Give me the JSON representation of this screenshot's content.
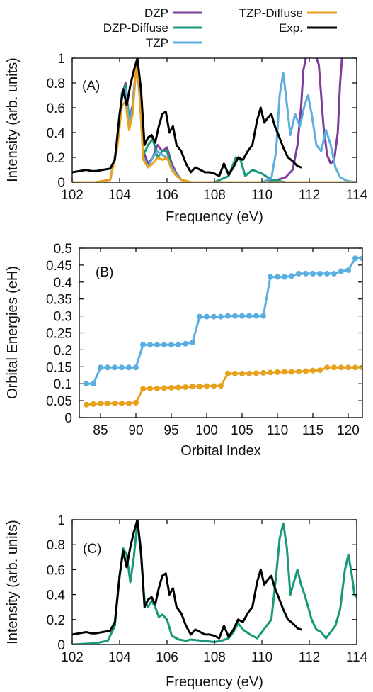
{
  "colors": {
    "DZP": "#7e3d9a",
    "DZP-Diffuse": "#17987a",
    "TZP": "#5aaee0",
    "TZP-Diffuse": "#e8a11c",
    "Exp.": "#000000"
  },
  "legend": [
    "DZP",
    "DZP-Diffuse",
    "TZP",
    "TZP-Diffuse",
    "Exp."
  ],
  "chart_data": [
    {
      "panel": "(A)",
      "type": "line",
      "xlabel": "Frequency (eV)",
      "ylabel": "Intensity (arb. units)",
      "xlim": [
        102,
        114
      ],
      "ylim": [
        0,
        1
      ],
      "xticks": [
        "102",
        "104",
        "106",
        "108",
        "110",
        "112",
        "114"
      ],
      "yticks": [
        "0",
        "0.2",
        "0.4",
        "0.6",
        "0.8",
        "1"
      ],
      "grid": false,
      "legend_position": "top",
      "series": [
        {
          "name": "DZP",
          "x": [
            102,
            103,
            103.6,
            103.9,
            104.1,
            104.25,
            104.4,
            104.55,
            104.72,
            104.85,
            105.0,
            105.2,
            105.4,
            105.6,
            105.8,
            106.0,
            106.2,
            106.4,
            106.6,
            107.0,
            108.0,
            109.0,
            110.0,
            110.5,
            111.0,
            111.3,
            111.5,
            111.65,
            111.75,
            111.85,
            112.0
          ],
          "y": [
            0,
            0,
            0.02,
            0.3,
            0.7,
            0.8,
            0.5,
            0.62,
            0.98,
            0.72,
            0.25,
            0.15,
            0.2,
            0.3,
            0.25,
            0.28,
            0.15,
            0.07,
            0.02,
            0,
            0,
            0,
            0,
            0.01,
            0.04,
            0.1,
            0.3,
            0.6,
            0.9,
            1.0,
            1.05
          ]
        },
        {
          "name": "DZP",
          "x": [
            112.2,
            112.4,
            112.6,
            112.75,
            112.9,
            113.05,
            113.2,
            113.3,
            113.4
          ],
          "y": [
            1.05,
            0.95,
            0.45,
            0.22,
            0.15,
            0.18,
            0.4,
            0.8,
            1.05
          ]
        },
        {
          "name": "DZP-Diffuse",
          "x": [
            102,
            103,
            103.6,
            103.9,
            104.1,
            104.25,
            104.4,
            104.55,
            104.72,
            104.85,
            105.0,
            105.2,
            105.4,
            105.6,
            105.8,
            106.0,
            106.2,
            106.4,
            106.6,
            107.0,
            108.0,
            108.6,
            108.9,
            109.1,
            109.3,
            109.6,
            110.0,
            110.4,
            111.0,
            112.0,
            113.0,
            114.0
          ],
          "y": [
            0,
            0,
            0.02,
            0.3,
            0.72,
            0.78,
            0.5,
            0.6,
            0.97,
            0.7,
            0.22,
            0.3,
            0.35,
            0.2,
            0.25,
            0.25,
            0.12,
            0.06,
            0.02,
            0,
            0,
            0.05,
            0.2,
            0.18,
            0.05,
            0.1,
            0.07,
            0.02,
            0,
            0,
            0,
            0
          ]
        },
        {
          "name": "TZP",
          "x": [
            102,
            103,
            103.6,
            103.9,
            104.1,
            104.25,
            104.4,
            104.55,
            104.72,
            104.85,
            105.0,
            105.2,
            105.4,
            105.6,
            105.8,
            106.0,
            106.2,
            106.4,
            106.6,
            107.0,
            108.0,
            109.0,
            110.0,
            110.4,
            110.6,
            110.75,
            110.9,
            111.0,
            111.2,
            111.4,
            111.6,
            111.8,
            111.95,
            112.1,
            112.3,
            112.5,
            112.7,
            112.9,
            113.1,
            113.3,
            113.6,
            114.0
          ],
          "y": [
            0,
            0,
            0.02,
            0.3,
            0.68,
            0.75,
            0.45,
            0.6,
            0.95,
            0.68,
            0.2,
            0.12,
            0.2,
            0.25,
            0.22,
            0.2,
            0.12,
            0.06,
            0.02,
            0,
            0,
            0,
            0,
            0.03,
            0.25,
            0.7,
            0.88,
            0.72,
            0.38,
            0.55,
            0.45,
            0.62,
            0.7,
            0.55,
            0.3,
            0.25,
            0.42,
            0.3,
            0.12,
            0.04,
            0.01,
            0
          ]
        },
        {
          "name": "TZP-Diffuse",
          "x": [
            102,
            103,
            103.6,
            103.9,
            104.1,
            104.25,
            104.4,
            104.55,
            104.72,
            104.85,
            105.0,
            105.2,
            105.4,
            105.6,
            105.8,
            106.0,
            106.2,
            106.4,
            106.6,
            107.0,
            108.0,
            109.0,
            110.0,
            111.0,
            112.0,
            113.0,
            114.0
          ],
          "y": [
            0,
            0,
            0.02,
            0.28,
            0.62,
            0.65,
            0.42,
            0.55,
            0.98,
            0.7,
            0.18,
            0.12,
            0.15,
            0.2,
            0.18,
            0.2,
            0.1,
            0.05,
            0.02,
            0,
            0,
            0,
            0,
            0,
            0,
            0,
            0
          ]
        },
        {
          "name": "Exp.",
          "x": [
            102.0,
            102.3,
            102.6,
            102.8,
            103.0,
            103.3,
            103.6,
            103.8,
            104.0,
            104.15,
            104.3,
            104.45,
            104.6,
            104.75,
            104.9,
            105.05,
            105.2,
            105.35,
            105.5,
            105.65,
            105.8,
            105.95,
            106.1,
            106.25,
            106.4,
            106.6,
            106.8,
            107.0,
            107.2,
            107.4,
            107.6,
            107.8,
            108.0,
            108.2,
            108.4,
            108.6,
            108.8,
            109.0,
            109.2,
            109.4,
            109.6,
            109.8,
            109.95,
            110.1,
            110.25,
            110.4,
            110.55,
            110.7,
            110.9,
            111.1,
            111.3,
            111.5,
            111.65
          ],
          "y": [
            0.08,
            0.09,
            0.1,
            0.09,
            0.09,
            0.1,
            0.11,
            0.18,
            0.55,
            0.75,
            0.62,
            0.78,
            0.9,
            1.0,
            0.75,
            0.3,
            0.36,
            0.38,
            0.32,
            0.45,
            0.55,
            0.57,
            0.4,
            0.45,
            0.3,
            0.25,
            0.15,
            0.08,
            0.12,
            0.1,
            0.08,
            0.08,
            0.07,
            0.05,
            0.15,
            0.06,
            0.12,
            0.2,
            0.18,
            0.25,
            0.3,
            0.5,
            0.6,
            0.48,
            0.52,
            0.55,
            0.45,
            0.38,
            0.28,
            0.2,
            0.17,
            0.13,
            0.12
          ]
        }
      ]
    },
    {
      "panel": "(B)",
      "type": "line",
      "xlabel": "Orbital Index",
      "ylabel": "Orbital Energies (eH)",
      "xlim": [
        82,
        122
      ],
      "ylim": [
        0,
        0.5
      ],
      "xticks": [
        "85",
        "90",
        "95",
        "100",
        "105",
        "110",
        "115",
        "120"
      ],
      "yticks": [
        "0",
        "0.05",
        "0.1",
        "0.15",
        "0.2",
        "0.25",
        "0.3",
        "0.35",
        "0.4",
        "0.45",
        "0.5"
      ],
      "grid": false,
      "series": [
        {
          "name": "",
          "color": "#5aaee0",
          "x": [
            83,
            84,
            85,
            86,
            87,
            88,
            89,
            90,
            91,
            92,
            93,
            94,
            95,
            96,
            97,
            98,
            99,
            100,
            101,
            102,
            103,
            104,
            105,
            106,
            107,
            108,
            109,
            110,
            111,
            112,
            113,
            114,
            115,
            116,
            117,
            118,
            119,
            120,
            121,
            122
          ],
          "y": [
            0.1,
            0.1,
            0.148,
            0.148,
            0.148,
            0.148,
            0.148,
            0.148,
            0.215,
            0.215,
            0.215,
            0.215,
            0.215,
            0.215,
            0.218,
            0.222,
            0.298,
            0.298,
            0.298,
            0.298,
            0.3,
            0.3,
            0.3,
            0.3,
            0.3,
            0.3,
            0.415,
            0.415,
            0.415,
            0.418,
            0.425,
            0.425,
            0.425,
            0.425,
            0.425,
            0.425,
            0.432,
            0.435,
            0.47,
            0.47
          ]
        },
        {
          "name": "",
          "color": "#e8a11c",
          "x": [
            83,
            84,
            85,
            86,
            87,
            88,
            89,
            90,
            91,
            92,
            93,
            94,
            95,
            96,
            97,
            98,
            99,
            100,
            101,
            102,
            103,
            104,
            105,
            106,
            107,
            108,
            109,
            110,
            111,
            112,
            113,
            114,
            115,
            116,
            117,
            118,
            119,
            120,
            121,
            122
          ],
          "y": [
            0.038,
            0.04,
            0.042,
            0.042,
            0.042,
            0.042,
            0.042,
            0.044,
            0.085,
            0.086,
            0.086,
            0.087,
            0.088,
            0.089,
            0.09,
            0.092,
            0.092,
            0.093,
            0.093,
            0.094,
            0.13,
            0.13,
            0.13,
            0.13,
            0.131,
            0.132,
            0.133,
            0.134,
            0.135,
            0.135,
            0.136,
            0.137,
            0.139,
            0.14,
            0.148,
            0.148,
            0.148,
            0.148,
            0.148,
            0.148
          ]
        }
      ]
    },
    {
      "panel": "(C)",
      "type": "line",
      "xlabel": "Frequency (eV)",
      "ylabel": "Intensity (arb. units)",
      "xlim": [
        102,
        114
      ],
      "ylim": [
        0,
        1
      ],
      "xticks": [
        "102",
        "104",
        "106",
        "108",
        "110",
        "112",
        "114"
      ],
      "yticks": [
        "0",
        "0.2",
        "0.4",
        "0.6",
        "0.8",
        "1"
      ],
      "grid": false,
      "series": [
        {
          "name": "",
          "color": "#17987a",
          "x": [
            102,
            103,
            103.5,
            103.8,
            104.0,
            104.15,
            104.3,
            104.45,
            104.6,
            104.75,
            104.9,
            105.05,
            105.2,
            105.35,
            105.5,
            105.65,
            105.8,
            106.0,
            106.2,
            106.5,
            106.8,
            107.0,
            107.5,
            108.0,
            108.3,
            108.6,
            108.8,
            109.0,
            109.2,
            109.5,
            109.8,
            110.0,
            110.2,
            110.4,
            110.6,
            110.75,
            110.9,
            111.05,
            111.2,
            111.35,
            111.5,
            111.65,
            111.8,
            111.95,
            112.1,
            112.3,
            112.5,
            112.7,
            112.9,
            113.1,
            113.3,
            113.5,
            113.65,
            113.8,
            113.9,
            114.0
          ],
          "y": [
            0,
            0.01,
            0.03,
            0.15,
            0.55,
            0.77,
            0.72,
            0.5,
            0.7,
            0.98,
            0.72,
            0.35,
            0.3,
            0.35,
            0.3,
            0.22,
            0.24,
            0.2,
            0.07,
            0.04,
            0.03,
            0.04,
            0.03,
            0.02,
            0.03,
            0.05,
            0.1,
            0.17,
            0.12,
            0.08,
            0.05,
            0.1,
            0.15,
            0.2,
            0.55,
            0.85,
            0.97,
            0.78,
            0.4,
            0.5,
            0.6,
            0.48,
            0.4,
            0.3,
            0.2,
            0.12,
            0.1,
            0.05,
            0.1,
            0.15,
            0.28,
            0.6,
            0.72,
            0.55,
            0.4,
            0.38
          ]
        },
        {
          "name": "",
          "color": "#000000",
          "x": [
            102.0,
            102.3,
            102.6,
            102.8,
            103.0,
            103.3,
            103.6,
            103.8,
            104.0,
            104.15,
            104.3,
            104.45,
            104.6,
            104.75,
            104.9,
            105.05,
            105.2,
            105.35,
            105.5,
            105.65,
            105.8,
            105.95,
            106.1,
            106.25,
            106.4,
            106.6,
            106.8,
            107.0,
            107.2,
            107.4,
            107.6,
            107.8,
            108.0,
            108.2,
            108.4,
            108.6,
            108.8,
            109.0,
            109.2,
            109.4,
            109.6,
            109.8,
            109.95,
            110.1,
            110.25,
            110.4,
            110.55,
            110.7,
            110.9,
            111.1,
            111.3,
            111.5,
            111.65
          ],
          "y": [
            0.08,
            0.09,
            0.1,
            0.09,
            0.09,
            0.1,
            0.11,
            0.18,
            0.55,
            0.75,
            0.62,
            0.78,
            0.9,
            1.0,
            0.75,
            0.3,
            0.36,
            0.38,
            0.32,
            0.45,
            0.55,
            0.57,
            0.4,
            0.45,
            0.3,
            0.25,
            0.15,
            0.08,
            0.12,
            0.1,
            0.08,
            0.08,
            0.07,
            0.05,
            0.15,
            0.06,
            0.12,
            0.2,
            0.18,
            0.25,
            0.3,
            0.5,
            0.6,
            0.48,
            0.52,
            0.55,
            0.45,
            0.38,
            0.28,
            0.2,
            0.17,
            0.13,
            0.12
          ]
        }
      ]
    }
  ]
}
